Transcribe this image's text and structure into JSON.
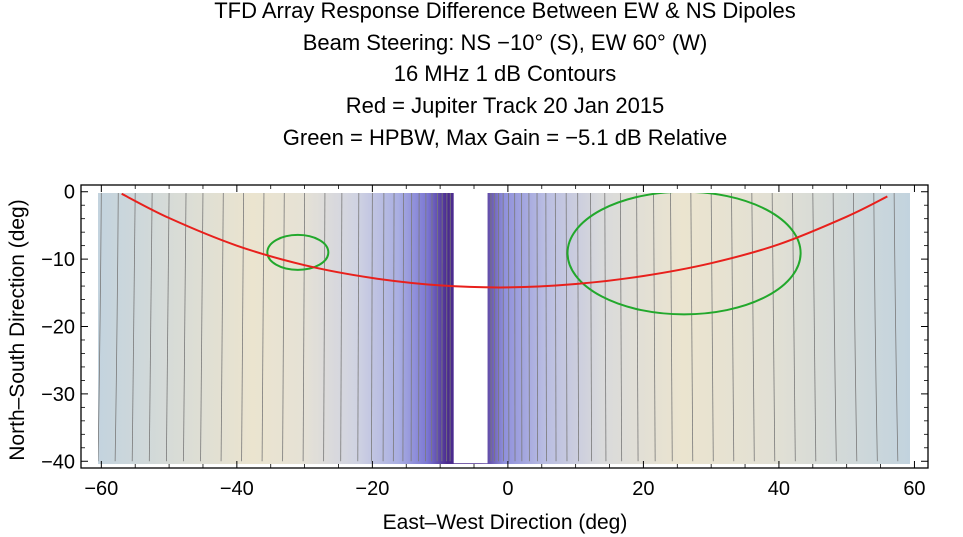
{
  "chart_data": {
    "type": "contour",
    "title_lines": [
      "TFD Array Response      Difference Between EW & NS Dipoles",
      "Beam Steering: NS −10° (S), EW 60° (W)",
      "16 MHz      1 dB Contours",
      "Red = Jupiter Track 20 Jan 2015",
      "Green = HPBW, Max Gain = −5.1 dB Relative"
    ],
    "xlabel": "East–West Direction (deg)",
    "ylabel": "North–South Direction (deg)",
    "xlim": [
      -63,
      62
    ],
    "ylim": [
      -41,
      1
    ],
    "xticks": [
      -60,
      -40,
      -20,
      0,
      20,
      40,
      60
    ],
    "xtick_labels": [
      "−60",
      "−40",
      "−20",
      "0",
      "20",
      "40",
      "60"
    ],
    "yticks": [
      0,
      -10,
      -20,
      -30,
      -40
    ],
    "ytick_labels": [
      "0",
      "−10",
      "−20",
      "−30",
      "−40"
    ],
    "data_region": {
      "x": [
        -60,
        60
      ],
      "y": [
        -40,
        0
      ]
    },
    "null_gap_x": [
      -8,
      -3
    ],
    "contour_interval_db": 1,
    "contour_x_positions": [
      -60,
      -57.5,
      -55,
      -52.5,
      -50,
      -47.5,
      -45,
      -42,
      -39,
      -36,
      -33,
      -30,
      -27,
      -24.5,
      -22,
      -20,
      -18.3,
      -16.8,
      -15.4,
      -14.2,
      -13.1,
      -12.1,
      -11.2,
      -10.4,
      -9.7,
      -9.0,
      -8.5,
      -2.5,
      -2.0,
      -1.4,
      -0.7,
      0.1,
      1.0,
      2.0,
      3.1,
      4.3,
      5.6,
      7.0,
      8.6,
      10.3,
      12.2,
      14.3,
      16.6,
      19,
      21.5,
      24,
      27,
      30,
      33,
      36,
      39,
      42,
      45,
      48,
      51,
      54,
      57,
      60
    ],
    "jupiter_track": {
      "color": "#e8201c",
      "x": [
        -57,
        -50,
        -40,
        -30,
        -20,
        -10,
        0,
        10,
        20,
        30,
        40,
        50,
        56
      ],
      "y": [
        -0.3,
        -3.9,
        -8.0,
        -10.9,
        -12.8,
        -13.9,
        -14.2,
        -13.7,
        -12.5,
        -10.6,
        -7.8,
        -3.7,
        -0.7
      ]
    },
    "hpbw_contours": {
      "color": "#22a82c",
      "ellipses": [
        {
          "cx": -31,
          "cy": -9,
          "rx": 4.5,
          "ry": 2.6
        },
        {
          "cx": 26,
          "cy": -9.1,
          "rx": 17.2,
          "ry": 9.1
        }
      ]
    },
    "colors": {
      "plot_frame": "#000000",
      "contour_line": "#7a7a7a",
      "edge_blue": "#c2d2dd",
      "mid_beige": "#ebe5d1",
      "gap_purple": "#4a2a8e"
    }
  }
}
